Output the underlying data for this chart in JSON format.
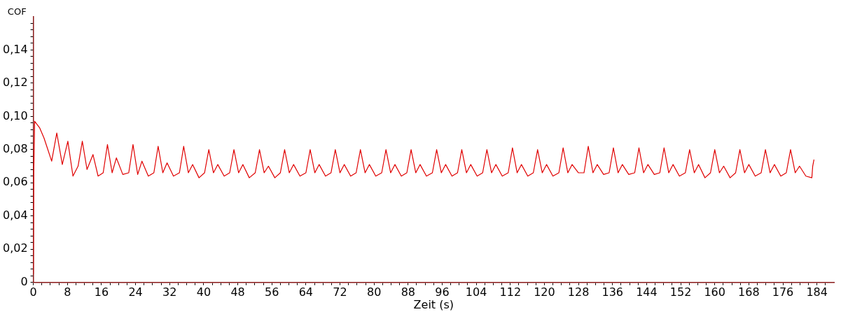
{
  "chart_data": {
    "type": "line",
    "xlabel": "Zeit (s)",
    "ylabel": "COF",
    "xlim": [
      0,
      188
    ],
    "ylim": [
      0,
      0.16
    ],
    "xticks": [
      0,
      {
        "value": 2,
        "label": null
      },
      {
        "value": 4,
        "label": null
      },
      {
        "value": 6,
        "label": null
      },
      8,
      {
        "value": 10,
        "label": null
      },
      {
        "value": 12,
        "label": null
      },
      {
        "value": 14,
        "label": null
      },
      16,
      {
        "value": 18,
        "label": null
      },
      {
        "value": 20,
        "label": null
      },
      {
        "value": 22,
        "label": null
      },
      24,
      {
        "value": 26,
        "label": null
      },
      {
        "value": 28,
        "label": null
      },
      {
        "value": 30,
        "label": null
      },
      32,
      {
        "value": 34,
        "label": null
      },
      {
        "value": 36,
        "label": null
      },
      {
        "value": 38,
        "label": null
      },
      40,
      {
        "value": 42,
        "label": null
      },
      {
        "value": 44,
        "label": null
      },
      {
        "value": 46,
        "label": null
      },
      48,
      {
        "value": 50,
        "label": null
      },
      {
        "value": 52,
        "label": null
      },
      {
        "value": 54,
        "label": null
      },
      56,
      {
        "value": 58,
        "label": null
      },
      {
        "value": 60,
        "label": null
      },
      {
        "value": 62,
        "label": null
      },
      64,
      {
        "value": 66,
        "label": null
      },
      {
        "value": 68,
        "label": null
      },
      {
        "value": 70,
        "label": null
      },
      72,
      {
        "value": 74,
        "label": null
      },
      {
        "value": 76,
        "label": null
      },
      {
        "value": 78,
        "label": null
      },
      80,
      {
        "value": 82,
        "label": null
      },
      {
        "value": 84,
        "label": null
      },
      {
        "value": 86,
        "label": null
      },
      88,
      {
        "value": 90,
        "label": null
      },
      {
        "value": 92,
        "label": null
      },
      {
        "value": 94,
        "label": null
      },
      96,
      {
        "value": 98,
        "label": null
      },
      {
        "value": 100,
        "label": null
      },
      {
        "value": 102,
        "label": null
      },
      104,
      {
        "value": 106,
        "label": null
      },
      {
        "value": 108,
        "label": null
      },
      {
        "value": 110,
        "label": null
      },
      112,
      {
        "value": 114,
        "label": null
      },
      {
        "value": 116,
        "label": null
      },
      {
        "value": 118,
        "label": null
      },
      120,
      {
        "value": 122,
        "label": null
      },
      {
        "value": 124,
        "label": null
      },
      {
        "value": 126,
        "label": null
      },
      128,
      {
        "value": 130,
        "label": null
      },
      {
        "value": 132,
        "label": null
      },
      {
        "value": 134,
        "label": null
      },
      136,
      {
        "value": 138,
        "label": null
      },
      {
        "value": 140,
        "label": null
      },
      {
        "value": 142,
        "label": null
      },
      144,
      {
        "value": 146,
        "label": null
      },
      {
        "value": 148,
        "label": null
      },
      {
        "value": 150,
        "label": null
      },
      152,
      {
        "value": 154,
        "label": null
      },
      {
        "value": 156,
        "label": null
      },
      {
        "value": 158,
        "label": null
      },
      160,
      {
        "value": 162,
        "label": null
      },
      {
        "value": 164,
        "label": null
      },
      {
        "value": 166,
        "label": null
      },
      168,
      {
        "value": 170,
        "label": null
      },
      {
        "value": 172,
        "label": null
      },
      {
        "value": 174,
        "label": null
      },
      176,
      {
        "value": 178,
        "label": null
      },
      {
        "value": 180,
        "label": null
      },
      {
        "value": 182,
        "label": null
      },
      184,
      {
        "value": 186,
        "label": null
      }
    ],
    "yticks": [
      0,
      {
        "value": 0.004,
        "label": null
      },
      {
        "value": 0.008,
        "label": null
      },
      {
        "value": 0.012,
        "label": null
      },
      {
        "value": 0.016,
        "label": null
      },
      {
        "value": 0.02,
        "label": "0,02"
      },
      {
        "value": 0.024,
        "label": null
      },
      {
        "value": 0.028,
        "label": null
      },
      {
        "value": 0.032,
        "label": null
      },
      {
        "value": 0.036,
        "label": null
      },
      {
        "value": 0.04,
        "label": "0,04"
      },
      {
        "value": 0.044,
        "label": null
      },
      {
        "value": 0.048,
        "label": null
      },
      {
        "value": 0.052,
        "label": null
      },
      {
        "value": 0.056,
        "label": null
      },
      {
        "value": 0.06,
        "label": "0,06"
      },
      {
        "value": 0.064,
        "label": null
      },
      {
        "value": 0.068,
        "label": null
      },
      {
        "value": 0.072,
        "label": null
      },
      {
        "value": 0.076,
        "label": null
      },
      {
        "value": 0.08,
        "label": "0,08"
      },
      {
        "value": 0.084,
        "label": null
      },
      {
        "value": 0.088,
        "label": null
      },
      {
        "value": 0.092,
        "label": null
      },
      {
        "value": 0.096,
        "label": null
      },
      {
        "value": 0.1,
        "label": "0,10"
      },
      {
        "value": 0.104,
        "label": null
      },
      {
        "value": 0.108,
        "label": null
      },
      {
        "value": 0.112,
        "label": null
      },
      {
        "value": 0.116,
        "label": null
      },
      {
        "value": 0.12,
        "label": "0,12"
      },
      {
        "value": 0.124,
        "label": null
      },
      {
        "value": 0.128,
        "label": null
      },
      {
        "value": 0.132,
        "label": null
      },
      {
        "value": 0.136,
        "label": null
      },
      {
        "value": 0.14,
        "label": "0,14"
      },
      {
        "value": 0.144,
        "label": null
      },
      {
        "value": 0.148,
        "label": null
      },
      {
        "value": 0.152,
        "label": null
      },
      {
        "value": 0.156,
        "label": null
      }
    ],
    "marker": "none",
    "line_style": "solid",
    "series": [
      {
        "color": "#e00000",
        "x": [
          0,
          0.1,
          0.3,
          1.5,
          2.5,
          3.4,
          4.3,
          5.5,
          6.8,
          8.1,
          9.3,
          10.5,
          11.5,
          12.6,
          14.0,
          15.2,
          16.4,
          17.4,
          18.5,
          19.5,
          21.0,
          22.4,
          23.4,
          24.5,
          25.5,
          27.0,
          28.3,
          29.3,
          30.4,
          31.4,
          32.9,
          34.3,
          35.3,
          36.4,
          37.4,
          38.9,
          40.2,
          41.2,
          42.3,
          43.3,
          44.8,
          46.1,
          47.1,
          48.2,
          49.2,
          50.7,
          52.1,
          53.1,
          54.2,
          55.2,
          56.7,
          58.0,
          59.0,
          60.1,
          61.1,
          62.6,
          64.0,
          65.0,
          66.1,
          67.1,
          68.6,
          69.9,
          70.9,
          72.0,
          73.0,
          74.5,
          75.8,
          76.8,
          77.9,
          78.9,
          80.4,
          81.8,
          82.8,
          83.9,
          84.9,
          86.4,
          87.7,
          88.7,
          89.8,
          90.8,
          92.3,
          93.7,
          94.7,
          95.8,
          96.8,
          98.3,
          99.6,
          100.6,
          101.7,
          102.7,
          104.2,
          105.5,
          106.5,
          107.6,
          108.6,
          110.1,
          111.5,
          112.5,
          113.6,
          114.6,
          116.1,
          117.4,
          118.4,
          119.5,
          120.5,
          122.0,
          123.4,
          124.4,
          125.5,
          126.5,
          128.0,
          129.3,
          130.3,
          131.4,
          132.4,
          133.9,
          135.2,
          136.2,
          137.3,
          138.3,
          139.8,
          141.2,
          142.2,
          143.3,
          144.3,
          145.8,
          147.1,
          148.1,
          149.2,
          150.2,
          151.7,
          153.1,
          154.1,
          155.2,
          156.2,
          157.7,
          159.0,
          160.0,
          161.1,
          162.1,
          163.6,
          164.9,
          165.9,
          167.0,
          168.0,
          169.5,
          170.9,
          171.9,
          173.0,
          174.0,
          175.5,
          176.8,
          177.8,
          178.9,
          179.9,
          181.4,
          182.8,
          183.0,
          183.3
        ],
        "values": [
          0.005,
          0.065,
          0.097,
          0.093,
          0.087,
          0.08,
          0.073,
          0.09,
          0.071,
          0.085,
          0.064,
          0.07,
          0.085,
          0.068,
          0.077,
          0.064,
          0.066,
          0.083,
          0.066,
          0.075,
          0.065,
          0.066,
          0.083,
          0.065,
          0.073,
          0.064,
          0.066,
          0.082,
          0.066,
          0.072,
          0.064,
          0.066,
          0.082,
          0.066,
          0.071,
          0.063,
          0.066,
          0.08,
          0.066,
          0.071,
          0.064,
          0.066,
          0.08,
          0.066,
          0.071,
          0.063,
          0.066,
          0.08,
          0.066,
          0.07,
          0.063,
          0.066,
          0.08,
          0.066,
          0.071,
          0.064,
          0.066,
          0.08,
          0.066,
          0.071,
          0.064,
          0.066,
          0.08,
          0.066,
          0.071,
          0.064,
          0.066,
          0.08,
          0.066,
          0.071,
          0.064,
          0.066,
          0.08,
          0.066,
          0.071,
          0.064,
          0.066,
          0.08,
          0.066,
          0.071,
          0.064,
          0.066,
          0.08,
          0.066,
          0.071,
          0.064,
          0.066,
          0.08,
          0.066,
          0.071,
          0.064,
          0.066,
          0.08,
          0.066,
          0.071,
          0.064,
          0.066,
          0.081,
          0.066,
          0.071,
          0.064,
          0.066,
          0.08,
          0.066,
          0.071,
          0.064,
          0.066,
          0.081,
          0.066,
          0.071,
          0.066,
          0.066,
          0.082,
          0.066,
          0.071,
          0.065,
          0.066,
          0.081,
          0.066,
          0.071,
          0.065,
          0.066,
          0.081,
          0.066,
          0.071,
          0.065,
          0.066,
          0.081,
          0.066,
          0.071,
          0.064,
          0.066,
          0.08,
          0.066,
          0.071,
          0.063,
          0.066,
          0.08,
          0.066,
          0.07,
          0.063,
          0.066,
          0.08,
          0.066,
          0.071,
          0.064,
          0.066,
          0.08,
          0.066,
          0.071,
          0.064,
          0.066,
          0.08,
          0.066,
          0.07,
          0.064,
          0.063,
          0.07,
          0.074
        ]
      }
    ]
  }
}
